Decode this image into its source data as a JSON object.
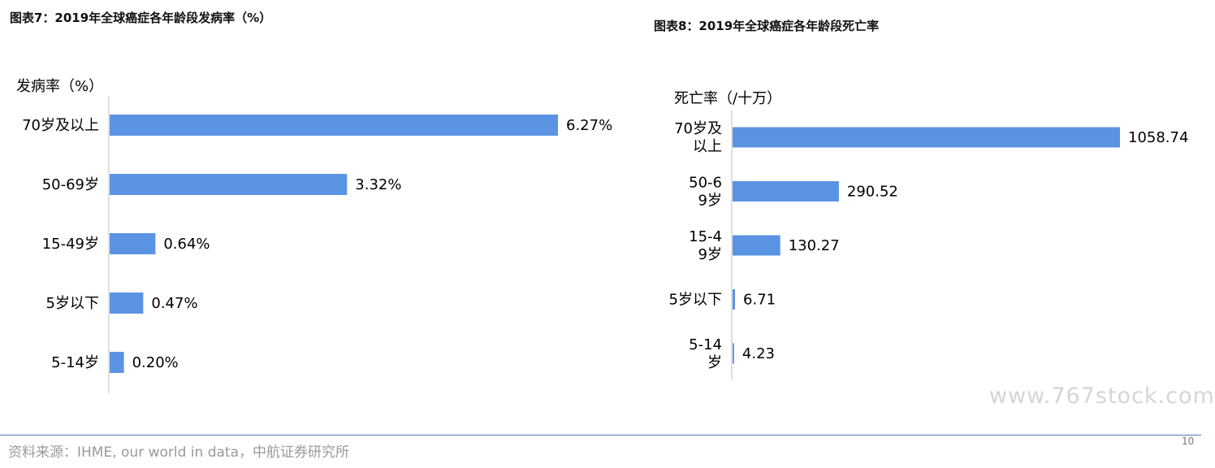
{
  "charts": [
    {
      "figure_title": "图表7：2019年全球癌症各年龄段发病率（%）",
      "axis_title": "发病率（%）"
    },
    {
      "figure_title": "图表8：2019年全球癌症各年龄段死亡率",
      "axis_title": "死亡率（/十万）"
    }
  ],
  "chart_data": [
    {
      "type": "bar",
      "orientation": "horizontal",
      "categories": [
        "70岁及以上",
        "50-69岁",
        "15-49岁",
        "5岁以下",
        "5-14岁"
      ],
      "values": [
        6.27,
        3.32,
        0.64,
        0.47,
        0.2
      ],
      "data_labels": [
        "6.27%",
        "3.32%",
        "0.64%",
        "0.47%",
        "0.20%"
      ],
      "xlim": [
        0,
        7
      ],
      "ylabel": "发病率（%）",
      "color": "#5b93e3",
      "grid": false
    },
    {
      "type": "bar",
      "orientation": "horizontal",
      "categories": [
        "70岁及以上",
        "50-69岁",
        "15-49岁",
        "5岁以下",
        "5-14岁"
      ],
      "values": [
        1058.74,
        290.52,
        130.27,
        6.71,
        4.23
      ],
      "data_labels": [
        "1058.74",
        "290.52",
        "130.27",
        "6.71",
        "4.23"
      ],
      "xlim": [
        0,
        1200
      ],
      "ylabel": "死亡率（/十万）",
      "color": "#5b93e3",
      "grid": false
    }
  ],
  "footer": {
    "source": "资料来源：IHME, our world in data，中航证券研究所",
    "page_number": "10",
    "watermark": "www.767stock.com"
  }
}
